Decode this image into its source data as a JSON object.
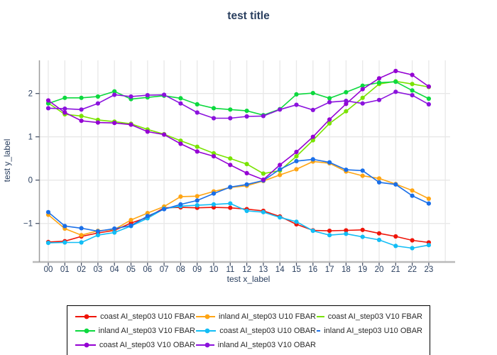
{
  "chart_data": {
    "type": "line",
    "title": "test title",
    "xlabel": "test x_label",
    "ylabel": "test y_label",
    "x": [
      "00",
      "01",
      "02",
      "03",
      "04",
      "05",
      "06",
      "07",
      "08",
      "09",
      "10",
      "11",
      "12",
      "13",
      "14",
      "15",
      "16",
      "17",
      "18",
      "19",
      "20",
      "21",
      "22",
      "23"
    ],
    "yticks": [
      -1,
      0,
      1,
      2
    ],
    "ylim": [
      -1.85,
      2.78
    ],
    "grid": true,
    "legend_position": "bottom",
    "text_color": "#2a3f5f",
    "series": [
      {
        "name": "coast AI_step03 U10 FBAR",
        "color": "#ef1408",
        "values": [
          -1.43,
          -1.41,
          -1.3,
          -1.22,
          -1.16,
          -0.99,
          -0.86,
          -0.64,
          -0.63,
          -0.64,
          -0.63,
          -0.64,
          -0.67,
          -0.71,
          -0.84,
          -1.02,
          -1.16,
          -1.17,
          -1.16,
          -1.15,
          -1.23,
          -1.3,
          -1.39,
          -1.44
        ]
      },
      {
        "name": "inland AI_step03 U10 FBAR",
        "color": "#ffa514",
        "values": [
          -0.8,
          -1.12,
          -1.27,
          -1.17,
          -1.14,
          -0.92,
          -0.76,
          -0.61,
          -0.38,
          -0.37,
          -0.26,
          -0.17,
          -0.13,
          -0.02,
          0.12,
          0.25,
          0.43,
          0.39,
          0.2,
          0.1,
          0.04,
          -0.09,
          -0.24,
          -0.43
        ]
      },
      {
        "name": "coast AI_step03 V10 FBAR",
        "color": "#79e300",
        "values": [
          1.78,
          1.52,
          1.48,
          1.39,
          1.35,
          1.3,
          1.17,
          1.06,
          0.91,
          0.77,
          0.62,
          0.5,
          0.37,
          0.15,
          0.22,
          0.55,
          0.92,
          1.31,
          1.59,
          1.9,
          2.22,
          2.28,
          2.22,
          2.15
        ]
      },
      {
        "name": "inland AI_step03 V10 FBAR",
        "color": "#0cd93e",
        "values": [
          1.77,
          1.9,
          1.9,
          1.93,
          2.05,
          1.87,
          1.91,
          1.95,
          1.89,
          1.75,
          1.66,
          1.63,
          1.6,
          1.5,
          1.64,
          1.98,
          2.01,
          1.89,
          2.03,
          2.18,
          2.25,
          2.27,
          2.07,
          1.88
        ]
      },
      {
        "name": "coast AI_step03 U10 OBAR",
        "color": "#12bdf5",
        "values": [
          -1.45,
          -1.44,
          -1.44,
          -1.27,
          -1.21,
          -1.06,
          -0.88,
          -0.66,
          -0.6,
          -0.58,
          -0.56,
          -0.54,
          -0.71,
          -0.74,
          -0.86,
          -0.96,
          -1.17,
          -1.27,
          -1.24,
          -1.31,
          -1.38,
          -1.52,
          -1.57,
          -1.5
        ]
      },
      {
        "name": "inland AI_step03 U10 OBAR",
        "color": "#1a6fe8",
        "values": [
          -0.74,
          -1.06,
          -1.11,
          -1.18,
          -1.12,
          -1.05,
          -0.83,
          -0.67,
          -0.56,
          -0.47,
          -0.31,
          -0.16,
          -0.1,
          -0.01,
          0.25,
          0.44,
          0.48,
          0.41,
          0.24,
          0.22,
          -0.05,
          -0.1,
          -0.36,
          -0.54
        ]
      },
      {
        "name": "coast AI_step03 V10 OBAR",
        "color": "#9400d3",
        "values": [
          1.84,
          1.56,
          1.37,
          1.33,
          1.32,
          1.28,
          1.12,
          1.05,
          0.84,
          0.66,
          0.55,
          0.35,
          0.16,
          0.01,
          0.35,
          0.65,
          1.0,
          1.4,
          1.76,
          2.1,
          2.35,
          2.52,
          2.43,
          2.16
        ]
      },
      {
        "name": "inland AI_step03 V10 OBAR",
        "color": "#8b12dd",
        "values": [
          1.66,
          1.65,
          1.63,
          1.77,
          1.97,
          1.93,
          1.96,
          1.97,
          1.77,
          1.56,
          1.43,
          1.43,
          1.47,
          1.48,
          1.63,
          1.74,
          1.62,
          1.8,
          1.83,
          1.77,
          1.85,
          2.04,
          1.96,
          1.75
        ]
      }
    ]
  }
}
